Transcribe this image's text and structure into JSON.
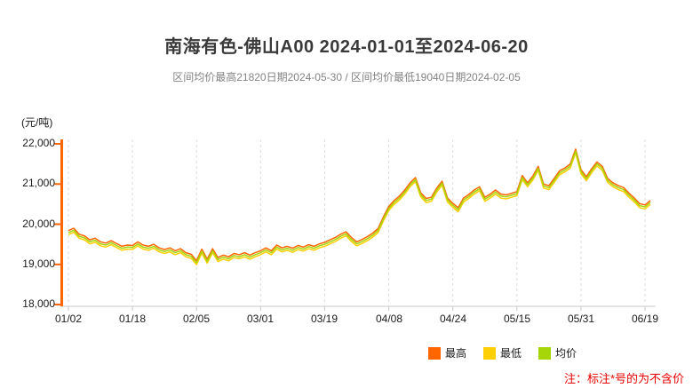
{
  "title": "南海有色-佛山A00 2024-01-01至2024-06-20",
  "subtitle": "区间均价最高21820日期2024-05-30 / 区间均价最低19040日期2024-02-05",
  "note": "注：标注*号的为不含价",
  "y_axis": {
    "unit_label": "(元/吨)",
    "tick_labels": [
      "22,000",
      "21,000",
      "20,000",
      "19,000",
      "18,000"
    ],
    "min": 18000,
    "max": 22000,
    "axis_color": "#ff6600"
  },
  "x_axis": {
    "tick_labels": [
      "01/02",
      "01/18",
      "02/05",
      "03/01",
      "03/19",
      "04/08",
      "04/24",
      "05/15",
      "05/31",
      "06/19"
    ],
    "axis_color": "#c8c8c8"
  },
  "legend": [
    {
      "label": "最高",
      "color": "#ff6600"
    },
    {
      "label": "最低",
      "color": "#fccf06"
    },
    {
      "label": "均价",
      "color": "#a6d608"
    }
  ],
  "colors": {
    "note_red": "#e60000",
    "grid": "#dcdcdc",
    "title_gray": "#3a3a3a"
  },
  "chart_data": {
    "type": "line",
    "title": "南海有色-佛山A00 2024-01-01至2024-06-20",
    "xlabel": "",
    "ylabel": "(元/吨)",
    "y_min": 18000,
    "y_max": 22000,
    "y_tick_step": 1000,
    "grid": "vertical-dashed",
    "legend_position": "bottom-right",
    "x_tick_labels": [
      "01/02",
      "01/18",
      "02/05",
      "03/01",
      "03/19",
      "04/08",
      "04/24",
      "05/15",
      "05/31",
      "06/19"
    ],
    "x_tick_indices": [
      0,
      12,
      24,
      36,
      48,
      60,
      72,
      84,
      96,
      108
    ],
    "series": [
      {
        "name": "最高",
        "color": "#ff6600",
        "values": [
          19840,
          19900,
          19750,
          19710,
          19610,
          19650,
          19560,
          19530,
          19590,
          19520,
          19450,
          19480,
          19470,
          19560,
          19480,
          19450,
          19500,
          19410,
          19370,
          19410,
          19340,
          19390,
          19290,
          19250,
          19090,
          19380,
          19130,
          19390,
          19170,
          19230,
          19190,
          19270,
          19240,
          19290,
          19230,
          19290,
          19340,
          19410,
          19340,
          19480,
          19410,
          19450,
          19400,
          19470,
          19430,
          19490,
          19450,
          19510,
          19550,
          19610,
          19670,
          19750,
          19810,
          19670,
          19560,
          19620,
          19690,
          19780,
          19890,
          20180,
          20440,
          20590,
          20700,
          20850,
          21030,
          21160,
          20780,
          20640,
          20670,
          20900,
          21070,
          20650,
          20520,
          20410,
          20650,
          20740,
          20850,
          20930,
          20670,
          20750,
          20850,
          20750,
          20730,
          20770,
          20810,
          21210,
          21030,
          21200,
          21440,
          21000,
          20960,
          21140,
          21330,
          21400,
          21500,
          21870,
          21360,
          21180,
          21380,
          21550,
          21440,
          21140,
          21030,
          20960,
          20910,
          20770,
          20650,
          20510,
          20480,
          20590
        ]
      },
      {
        "name": "最低",
        "color": "#fccf06",
        "values": [
          19740,
          19800,
          19650,
          19610,
          19510,
          19550,
          19460,
          19430,
          19490,
          19420,
          19350,
          19380,
          19370,
          19460,
          19380,
          19350,
          19400,
          19310,
          19270,
          19310,
          19240,
          19290,
          19190,
          19150,
          18990,
          19280,
          19030,
          19290,
          19070,
          19130,
          19090,
          19170,
          19140,
          19190,
          19130,
          19190,
          19240,
          19310,
          19240,
          19380,
          19310,
          19350,
          19300,
          19370,
          19330,
          19390,
          19350,
          19410,
          19450,
          19510,
          19570,
          19650,
          19710,
          19570,
          19460,
          19520,
          19590,
          19680,
          19790,
          20080,
          20340,
          20490,
          20600,
          20750,
          20930,
          21060,
          20680,
          20540,
          20570,
          20800,
          20970,
          20550,
          20420,
          20310,
          20550,
          20640,
          20750,
          20830,
          20570,
          20650,
          20750,
          20650,
          20630,
          20670,
          20710,
          21110,
          20930,
          21100,
          21340,
          20900,
          20860,
          21040,
          21230,
          21300,
          21400,
          21770,
          21260,
          21080,
          21280,
          21450,
          21340,
          21040,
          20930,
          20860,
          20810,
          20670,
          20550,
          20410,
          20380,
          20490
        ]
      },
      {
        "name": "均价",
        "color": "#a6d608",
        "values": [
          19790,
          19850,
          19700,
          19660,
          19560,
          19600,
          19510,
          19480,
          19540,
          19470,
          19400,
          19430,
          19420,
          19510,
          19430,
          19400,
          19450,
          19360,
          19320,
          19360,
          19290,
          19340,
          19240,
          19200,
          19040,
          19330,
          19080,
          19340,
          19120,
          19180,
          19140,
          19220,
          19190,
          19240,
          19180,
          19240,
          19290,
          19360,
          19290,
          19430,
          19360,
          19400,
          19350,
          19420,
          19380,
          19440,
          19400,
          19460,
          19500,
          19560,
          19620,
          19700,
          19760,
          19620,
          19510,
          19570,
          19640,
          19730,
          19840,
          20130,
          20390,
          20540,
          20650,
          20800,
          20980,
          21110,
          20730,
          20590,
          20620,
          20850,
          21020,
          20600,
          20470,
          20360,
          20600,
          20690,
          20800,
          20880,
          20620,
          20700,
          20800,
          20700,
          20680,
          20720,
          20760,
          21160,
          20980,
          21150,
          21390,
          20950,
          20910,
          21090,
          21280,
          21350,
          21450,
          21820,
          21310,
          21130,
          21330,
          21500,
          21390,
          21090,
          20980,
          20910,
          20860,
          20720,
          20600,
          20460,
          20430,
          20540
        ]
      }
    ]
  }
}
